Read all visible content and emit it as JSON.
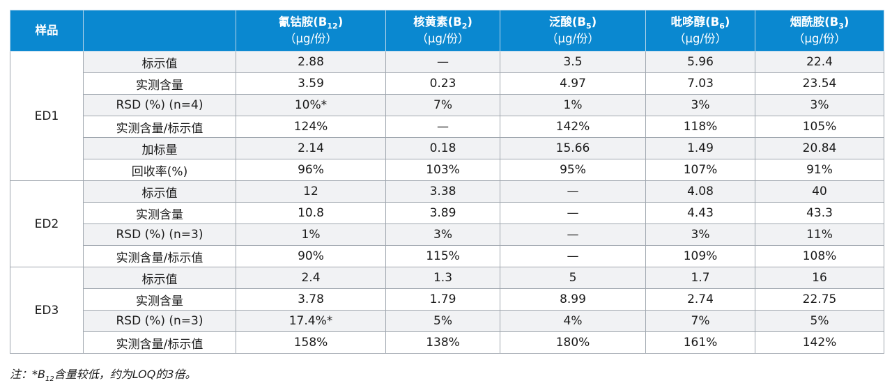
{
  "table": {
    "header": {
      "sample": "样品",
      "columns": [
        {
          "name": "氰钴胺(B",
          "sub": "12",
          "close": ")",
          "unit": "（μg/份）"
        },
        {
          "name": "核黄素(B",
          "sub": "2",
          "close": ")",
          "unit": "（μg/份）"
        },
        {
          "name": "泛酸(B",
          "sub": "5",
          "close": ")",
          "unit": "（μg/份）"
        },
        {
          "name": "吡哆醇(B",
          "sub": "6",
          "close": ")",
          "unit": "（μg/份）"
        },
        {
          "name": "烟酰胺(B",
          "sub": "3",
          "close": ")",
          "unit": "（μg/份）"
        }
      ]
    },
    "groups": [
      {
        "sample": "ED1",
        "rows": [
          {
            "metric": "标示值",
            "values": [
              "2.88",
              "—",
              "3.5",
              "5.96",
              "22.4"
            ]
          },
          {
            "metric": "实测含量",
            "values": [
              "3.59",
              "0.23",
              "4.97",
              "7.03",
              "23.54"
            ]
          },
          {
            "metric": "RSD (%) (n=4)",
            "values": [
              "10%*",
              "7%",
              "1%",
              "3%",
              "3%"
            ]
          },
          {
            "metric": "实测含量/标示值",
            "values": [
              "124%",
              "—",
              "142%",
              "118%",
              "105%"
            ]
          },
          {
            "metric": "加标量",
            "values": [
              "2.14",
              "0.18",
              "15.66",
              "1.49",
              "20.84"
            ]
          },
          {
            "metric": "回收率(%)",
            "values": [
              "96%",
              "103%",
              "95%",
              "107%",
              "91%"
            ]
          }
        ]
      },
      {
        "sample": "ED2",
        "rows": [
          {
            "metric": "标示值",
            "values": [
              "12",
              "3.38",
              "—",
              "4.08",
              "40"
            ]
          },
          {
            "metric": "实测含量",
            "values": [
              "10.8",
              "3.89",
              "—",
              "4.43",
              "43.3"
            ]
          },
          {
            "metric": "RSD (%) (n=3)",
            "values": [
              "1%",
              "3%",
              "—",
              "3%",
              "11%"
            ]
          },
          {
            "metric": "实测含量/标示值",
            "values": [
              "90%",
              "115%",
              "—",
              "109%",
              "108%"
            ]
          }
        ]
      },
      {
        "sample": "ED3",
        "rows": [
          {
            "metric": "标示值",
            "values": [
              "2.4",
              "1.3",
              "5",
              "1.7",
              "16"
            ]
          },
          {
            "metric": "实测含量",
            "values": [
              "3.78",
              "1.79",
              "8.99",
              "2.74",
              "22.75"
            ]
          },
          {
            "metric": "RSD (%) (n=3)",
            "values": [
              "17.4%*",
              "5%",
              "4%",
              "7%",
              "5%"
            ]
          },
          {
            "metric": "实测含量/标示值",
            "values": [
              "158%",
              "138%",
              "180%",
              "161%",
              "142%"
            ]
          }
        ]
      }
    ]
  },
  "footnote": {
    "prefix": "注：*B",
    "sub": "12",
    "text": "含量较低，约为LOQ的3倍。"
  },
  "colors": {
    "header_bg": "#0a88d0",
    "header_text": "#ffffff",
    "shaded_row": "#f1f2f4",
    "border": "#9fa6ae"
  }
}
